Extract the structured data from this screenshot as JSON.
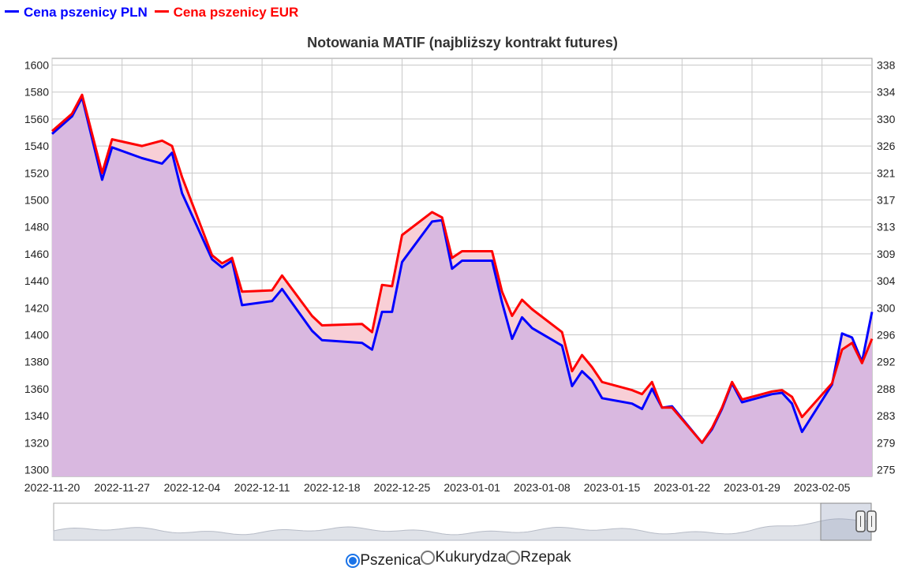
{
  "legend": [
    {
      "label": "Cena pszenicy PLN",
      "color": "#0000ff"
    },
    {
      "label": "Cena pszenicy EUR",
      "color": "#ff0000"
    }
  ],
  "chart_data": {
    "type": "area",
    "title": "Notowania MATIF (najbliższy kontrakt futures)",
    "xlabel": "",
    "ylabel_left": "",
    "ylabel_right": "",
    "grid": true,
    "fill_color": "#d9b8e0",
    "between_fill_color": "#f8cfd6",
    "x_ticks": [
      "2022-11-20",
      "2022-11-27",
      "2022-12-04",
      "2022-12-11",
      "2022-12-18",
      "2022-12-25",
      "2023-01-01",
      "2023-01-08",
      "2023-01-15",
      "2023-01-22",
      "2023-01-29",
      "2023-02-05"
    ],
    "x_range": [
      "2022-11-20",
      "2023-02-10"
    ],
    "y_left_ticks": [
      1300,
      1320,
      1340,
      1360,
      1380,
      1400,
      1420,
      1440,
      1460,
      1480,
      1500,
      1520,
      1540,
      1560,
      1580,
      1600
    ],
    "y_left_range": [
      1295,
      1605
    ],
    "y_right_ticks": [
      "338",
      "334",
      "330",
      "326",
      "321",
      "317",
      "313",
      "309",
      "304",
      "300",
      "296",
      "292",
      "288",
      "283",
      "279",
      "275"
    ],
    "series": [
      {
        "name": "Cena pszenicy PLN",
        "color": "#0000ff",
        "points": [
          [
            "2022-11-20",
            1549
          ],
          [
            "2022-11-22",
            1562
          ],
          [
            "2022-11-23",
            1576
          ],
          [
            "2022-11-25",
            1515
          ],
          [
            "2022-11-26",
            1539
          ],
          [
            "2022-11-29",
            1531
          ],
          [
            "2022-12-01",
            1527
          ],
          [
            "2022-12-02",
            1535
          ],
          [
            "2022-12-03",
            1505
          ],
          [
            "2022-12-06",
            1456
          ],
          [
            "2022-12-07",
            1450
          ],
          [
            "2022-12-08",
            1455
          ],
          [
            "2022-12-09",
            1422
          ],
          [
            "2022-12-12",
            1425
          ],
          [
            "2022-12-13",
            1434
          ],
          [
            "2022-12-16",
            1403
          ],
          [
            "2022-12-17",
            1396
          ],
          [
            "2022-12-21",
            1394
          ],
          [
            "2022-12-22",
            1389
          ],
          [
            "2022-12-23",
            1417
          ],
          [
            "2022-12-24",
            1417
          ],
          [
            "2022-12-25",
            1454
          ],
          [
            "2022-12-28",
            1484
          ],
          [
            "2022-12-29",
            1485
          ],
          [
            "2022-12-30",
            1449
          ],
          [
            "2022-12-31",
            1455
          ],
          [
            "2023-01-03",
            1455
          ],
          [
            "2023-01-04",
            1424
          ],
          [
            "2023-01-05",
            1397
          ],
          [
            "2023-01-06",
            1413
          ],
          [
            "2023-01-07",
            1405
          ],
          [
            "2023-01-10",
            1392
          ],
          [
            "2023-01-11",
            1362
          ],
          [
            "2023-01-12",
            1373
          ],
          [
            "2023-01-13",
            1366
          ],
          [
            "2023-01-14",
            1353
          ],
          [
            "2023-01-17",
            1349
          ],
          [
            "2023-01-18",
            1345
          ],
          [
            "2023-01-19",
            1360
          ],
          [
            "2023-01-20",
            1346
          ],
          [
            "2023-01-21",
            1347
          ],
          [
            "2023-01-24",
            1320
          ],
          [
            "2023-01-25",
            1330
          ],
          [
            "2023-01-26",
            1345
          ],
          [
            "2023-01-27",
            1364
          ],
          [
            "2023-01-28",
            1350
          ],
          [
            "2023-01-31",
            1356
          ],
          [
            "2023-02-01",
            1357
          ],
          [
            "2023-02-02",
            1349
          ],
          [
            "2023-02-03",
            1328
          ],
          [
            "2023-02-06",
            1363
          ],
          [
            "2023-02-07",
            1401
          ],
          [
            "2023-02-08",
            1398
          ],
          [
            "2023-02-09",
            1380
          ],
          [
            "2023-02-10",
            1417
          ]
        ]
      },
      {
        "name": "Cena pszenicy EUR",
        "color": "#ff0000",
        "points": [
          [
            "2022-11-20",
            1551
          ],
          [
            "2022-11-22",
            1564
          ],
          [
            "2022-11-23",
            1578
          ],
          [
            "2022-11-25",
            1520
          ],
          [
            "2022-11-26",
            1545
          ],
          [
            "2022-11-29",
            1540
          ],
          [
            "2022-12-01",
            1544
          ],
          [
            "2022-12-02",
            1540
          ],
          [
            "2022-12-03",
            1517
          ],
          [
            "2022-12-06",
            1459
          ],
          [
            "2022-12-07",
            1453
          ],
          [
            "2022-12-08",
            1457
          ],
          [
            "2022-12-09",
            1432
          ],
          [
            "2022-12-12",
            1433
          ],
          [
            "2022-12-13",
            1444
          ],
          [
            "2022-12-16",
            1414
          ],
          [
            "2022-12-17",
            1407
          ],
          [
            "2022-12-21",
            1408
          ],
          [
            "2022-12-22",
            1402
          ],
          [
            "2022-12-23",
            1437
          ],
          [
            "2022-12-24",
            1436
          ],
          [
            "2022-12-25",
            1474
          ],
          [
            "2022-12-28",
            1491
          ],
          [
            "2022-12-29",
            1487
          ],
          [
            "2022-12-30",
            1457
          ],
          [
            "2022-12-31",
            1462
          ],
          [
            "2023-01-03",
            1462
          ],
          [
            "2023-01-04",
            1432
          ],
          [
            "2023-01-05",
            1414
          ],
          [
            "2023-01-06",
            1426
          ],
          [
            "2023-01-07",
            1419
          ],
          [
            "2023-01-10",
            1402
          ],
          [
            "2023-01-11",
            1373
          ],
          [
            "2023-01-12",
            1385
          ],
          [
            "2023-01-13",
            1376
          ],
          [
            "2023-01-14",
            1365
          ],
          [
            "2023-01-17",
            1359
          ],
          [
            "2023-01-18",
            1356
          ],
          [
            "2023-01-19",
            1365
          ],
          [
            "2023-01-20",
            1346
          ],
          [
            "2023-01-21",
            1346
          ],
          [
            "2023-01-24",
            1320
          ],
          [
            "2023-01-25",
            1331
          ],
          [
            "2023-01-26",
            1346
          ],
          [
            "2023-01-27",
            1365
          ],
          [
            "2023-01-28",
            1352
          ],
          [
            "2023-01-31",
            1358
          ],
          [
            "2023-02-01",
            1359
          ],
          [
            "2023-02-02",
            1354
          ],
          [
            "2023-02-03",
            1339
          ],
          [
            "2023-02-06",
            1364
          ],
          [
            "2023-02-07",
            1389
          ],
          [
            "2023-02-08",
            1394
          ],
          [
            "2023-02-09",
            1379
          ],
          [
            "2023-02-10",
            1397
          ]
        ]
      }
    ]
  },
  "radio_options": [
    {
      "label": "Pszenica",
      "selected": true
    },
    {
      "label": "Kukurydza",
      "selected": false
    },
    {
      "label": "Rzepak",
      "selected": false
    }
  ]
}
